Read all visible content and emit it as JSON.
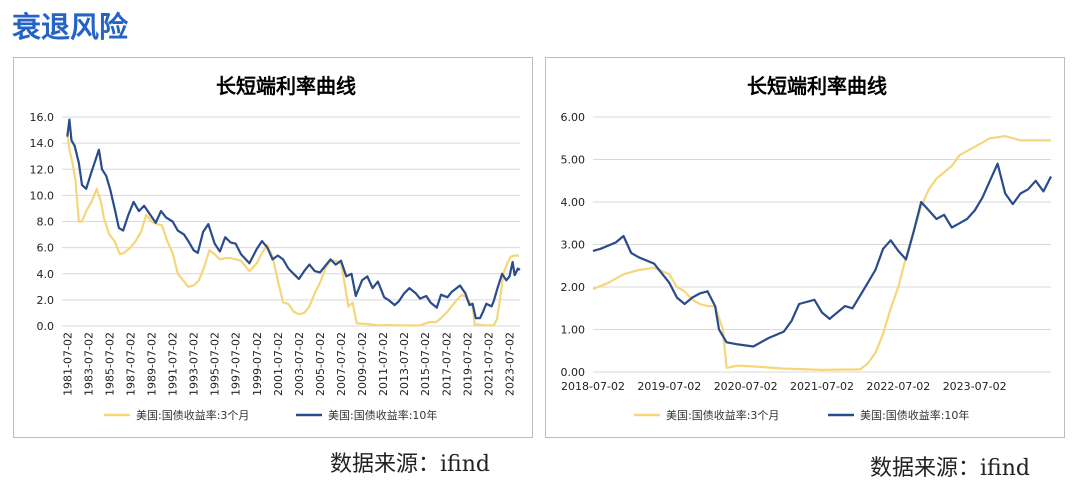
{
  "page": {
    "title": "衰退风险",
    "colors": {
      "title": "#2563c7",
      "series_3m": "#f5d67a",
      "series_10y": "#2a4b8d"
    }
  },
  "left_source": "数据来源：ifind",
  "right_source": "数据来源：ifind",
  "chart_data": [
    {
      "type": "line",
      "title": "长短端利率曲线",
      "xlabel": "",
      "ylabel": "",
      "x_ticks": [
        "1981-07-02",
        "1983-07-02",
        "1985-07-02",
        "1987-07-02",
        "1989-07-02",
        "1991-07-02",
        "1993-07-02",
        "1995-07-02",
        "1997-07-02",
        "1999-07-02",
        "2001-07-02",
        "2003-07-02",
        "2005-07-02",
        "2007-07-02",
        "2009-07-02",
        "2011-07-02",
        "2013-07-02",
        "2015-07-02",
        "2017-07-02",
        "2019-07-02",
        "2021-07-02",
        "2023-07-02"
      ],
      "y_ticks": [
        "0.0",
        "2.0",
        "4.0",
        "6.0",
        "8.0",
        "10.0",
        "12.0",
        "14.0",
        "16.0"
      ],
      "ylim": [
        0,
        16
      ],
      "xlim": [
        1981.0,
        2024.5
      ],
      "grid": true,
      "legend": "bottom",
      "series": [
        {
          "name": "美国:国债收益率:3个月",
          "x": [
            1981.5,
            1981.7,
            1982.0,
            1982.3,
            1982.6,
            1982.9,
            1983.3,
            1983.8,
            1984.3,
            1984.7,
            1985.0,
            1985.5,
            1986.0,
            1986.5,
            1986.9,
            1987.5,
            1988.0,
            1988.5,
            1989.0,
            1989.5,
            1990.0,
            1990.5,
            1991.0,
            1991.5,
            1992.0,
            1992.5,
            1993.0,
            1993.5,
            1994.0,
            1994.5,
            1995.0,
            1995.5,
            1996.0,
            1996.5,
            1997.0,
            1998.0,
            1998.8,
            1999.5,
            2000.0,
            2000.5,
            2001.0,
            2001.5,
            2002.0,
            2002.5,
            2003.0,
            2003.5,
            2004.0,
            2004.5,
            2005.0,
            2005.5,
            2006.0,
            2006.5,
            2007.0,
            2007.5,
            2007.9,
            2008.2,
            2008.6,
            2009.0,
            2010.0,
            2011.0,
            2012.0,
            2013.0,
            2014.0,
            2015.0,
            2015.9,
            2016.5,
            2017.0,
            2017.5,
            2018.0,
            2018.5,
            2019.0,
            2019.5,
            2020.0,
            2020.2,
            2020.5,
            2021.0,
            2021.5,
            2022.0,
            2022.3,
            2022.6,
            2022.9,
            2023.3,
            2023.6,
            2024.0,
            2024.4
          ],
          "y": [
            14.8,
            13.5,
            12.5,
            11.0,
            8.0,
            8.0,
            8.8,
            9.5,
            10.5,
            9.5,
            8.2,
            7.0,
            6.5,
            5.5,
            5.6,
            6.0,
            6.5,
            7.2,
            8.5,
            8.0,
            7.8,
            7.7,
            6.5,
            5.6,
            4.0,
            3.5,
            3.0,
            3.1,
            3.5,
            4.5,
            5.8,
            5.5,
            5.1,
            5.2,
            5.2,
            5.0,
            4.2,
            4.8,
            5.6,
            6.2,
            5.3,
            3.5,
            1.8,
            1.7,
            1.1,
            0.9,
            1.0,
            1.5,
            2.5,
            3.3,
            4.4,
            5.0,
            5.0,
            4.8,
            3.0,
            1.5,
            1.8,
            0.2,
            0.15,
            0.05,
            0.08,
            0.05,
            0.04,
            0.05,
            0.3,
            0.3,
            0.6,
            1.0,
            1.5,
            2.0,
            2.4,
            2.1,
            1.5,
            0.1,
            0.12,
            0.05,
            0.05,
            0.05,
            0.5,
            2.0,
            4.0,
            4.8,
            5.3,
            5.4,
            5.4
          ]
        },
        {
          "name": "美国:国债收益率:10年",
          "x": [
            1981.5,
            1981.7,
            1981.9,
            1982.2,
            1982.6,
            1982.9,
            1983.3,
            1983.8,
            1984.1,
            1984.5,
            1984.8,
            1985.2,
            1985.6,
            1986.0,
            1986.4,
            1986.8,
            1987.3,
            1987.8,
            1988.3,
            1988.8,
            1989.4,
            1989.9,
            1990.4,
            1990.9,
            1991.5,
            1992.0,
            1992.6,
            1993.0,
            1993.5,
            1993.9,
            1994.4,
            1994.9,
            1995.5,
            1996.0,
            1996.5,
            1997.0,
            1997.5,
            1998.0,
            1998.8,
            1999.5,
            2000.0,
            2000.5,
            2001.0,
            2001.5,
            2002.0,
            2002.5,
            2003.0,
            2003.5,
            2004.0,
            2004.5,
            2005.0,
            2005.5,
            2006.0,
            2006.5,
            2007.0,
            2007.5,
            2008.0,
            2008.5,
            2008.9,
            2009.5,
            2010.0,
            2010.5,
            2011.0,
            2011.6,
            2012.0,
            2012.6,
            2013.0,
            2013.5,
            2014.0,
            2014.6,
            2015.0,
            2015.6,
            2016.0,
            2016.6,
            2017.0,
            2017.6,
            2018.0,
            2018.8,
            2019.3,
            2019.7,
            2020.0,
            2020.3,
            2020.7,
            2021.0,
            2021.3,
            2021.8,
            2022.0,
            2022.4,
            2022.8,
            2023.2,
            2023.5,
            2023.8,
            2024.0,
            2024.3,
            2024.5
          ],
          "y": [
            14.5,
            15.8,
            14.2,
            13.8,
            12.5,
            10.8,
            10.5,
            11.8,
            12.5,
            13.5,
            12.0,
            11.5,
            10.4,
            9.0,
            7.5,
            7.3,
            8.5,
            9.5,
            8.8,
            9.2,
            8.5,
            7.9,
            8.8,
            8.3,
            8.0,
            7.3,
            7.0,
            6.5,
            5.8,
            5.6,
            7.2,
            7.8,
            6.3,
            5.7,
            6.8,
            6.4,
            6.3,
            5.5,
            4.8,
            5.9,
            6.5,
            6.0,
            5.1,
            5.4,
            5.1,
            4.4,
            4.0,
            3.6,
            4.2,
            4.7,
            4.2,
            4.1,
            4.6,
            5.1,
            4.7,
            5.0,
            3.8,
            4.0,
            2.3,
            3.5,
            3.8,
            2.9,
            3.4,
            2.2,
            2.0,
            1.6,
            1.9,
            2.5,
            2.9,
            2.5,
            2.1,
            2.3,
            1.8,
            1.4,
            2.4,
            2.2,
            2.6,
            3.1,
            2.5,
            1.6,
            1.7,
            0.6,
            0.6,
            1.1,
            1.7,
            1.5,
            1.9,
            3.0,
            4.0,
            3.5,
            3.8,
            4.9,
            3.9,
            4.4,
            4.3
          ]
        }
      ]
    },
    {
      "type": "line",
      "title": "长短端利率曲线",
      "xlabel": "",
      "ylabel": "",
      "x_ticks": [
        "2018-07-02",
        "2019-07-02",
        "2020-07-02",
        "2021-07-02",
        "2022-07-02",
        "2023-07-02"
      ],
      "y_ticks": [
        "0.00",
        "1.00",
        "2.00",
        "3.00",
        "4.00",
        "5.00",
        "6.00"
      ],
      "ylim": [
        0,
        6
      ],
      "xlim": [
        2018.5,
        2024.5
      ],
      "grid": true,
      "legend": "bottom",
      "series": [
        {
          "name": "美国:国债收益率:3个月",
          "x": [
            2018.5,
            2018.7,
            2018.9,
            2019.1,
            2019.3,
            2019.5,
            2019.6,
            2019.7,
            2019.8,
            2019.9,
            2020.0,
            2020.1,
            2020.2,
            2020.25,
            2020.4,
            2020.7,
            2021.0,
            2021.5,
            2022.0,
            2022.1,
            2022.2,
            2022.3,
            2022.4,
            2022.5,
            2022.6,
            2022.7,
            2022.8,
            2022.9,
            2023.0,
            2023.1,
            2023.2,
            2023.3,
            2023.5,
            2023.7,
            2023.9,
            2024.1,
            2024.3,
            2024.5
          ],
          "y": [
            1.95,
            2.1,
            2.3,
            2.4,
            2.45,
            2.3,
            2.0,
            1.9,
            1.7,
            1.6,
            1.55,
            1.55,
            1.0,
            0.1,
            0.15,
            0.12,
            0.08,
            0.05,
            0.06,
            0.2,
            0.45,
            0.9,
            1.5,
            2.0,
            2.7,
            3.3,
            3.9,
            4.3,
            4.55,
            4.7,
            4.85,
            5.1,
            5.3,
            5.5,
            5.55,
            5.45,
            5.45,
            5.45
          ]
        },
        {
          "name": "美国:国债收益率:10年",
          "x": [
            2018.5,
            2018.6,
            2018.8,
            2018.9,
            2019.0,
            2019.1,
            2019.3,
            2019.5,
            2019.6,
            2019.7,
            2019.8,
            2019.9,
            2020.0,
            2020.1,
            2020.15,
            2020.25,
            2020.4,
            2020.6,
            2020.8,
            2021.0,
            2021.1,
            2021.2,
            2021.4,
            2021.5,
            2021.6,
            2021.8,
            2021.9,
            2022.0,
            2022.1,
            2022.2,
            2022.3,
            2022.4,
            2022.5,
            2022.6,
            2022.7,
            2022.8,
            2022.9,
            2023.0,
            2023.1,
            2023.2,
            2023.3,
            2023.4,
            2023.5,
            2023.6,
            2023.7,
            2023.8,
            2023.9,
            2024.0,
            2024.1,
            2024.2,
            2024.3,
            2024.4,
            2024.5
          ],
          "y": [
            2.85,
            2.9,
            3.05,
            3.2,
            2.8,
            2.7,
            2.55,
            2.1,
            1.75,
            1.6,
            1.75,
            1.85,
            1.9,
            1.55,
            1.0,
            0.7,
            0.65,
            0.6,
            0.8,
            0.95,
            1.2,
            1.6,
            1.7,
            1.4,
            1.25,
            1.55,
            1.5,
            1.8,
            2.1,
            2.4,
            2.9,
            3.1,
            2.85,
            2.65,
            3.3,
            4.0,
            3.8,
            3.6,
            3.7,
            3.4,
            3.5,
            3.6,
            3.8,
            4.1,
            4.5,
            4.9,
            4.2,
            3.95,
            4.2,
            4.3,
            4.5,
            4.25,
            4.6
          ]
        }
      ]
    }
  ]
}
